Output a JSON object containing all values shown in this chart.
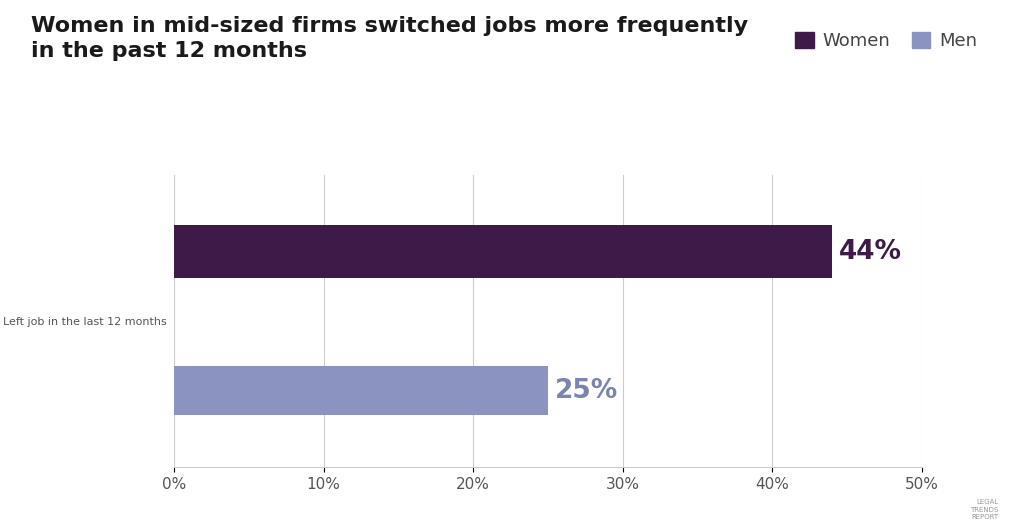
{
  "title_line1": "Women in mid-sized firms switched jobs more frequently",
  "title_line2": "in the past 12 months",
  "title_fontsize": 16,
  "title_color": "#1a1a1a",
  "category_label": "Left job in the last 12 months",
  "women_value": 0.44,
  "men_value": 0.25,
  "women_color": "#3d1a47",
  "men_color": "#8b93c0",
  "women_label_color": "#3d1a47",
  "men_label_color": "#7b83b0",
  "women_pct_label": "44%",
  "men_pct_label": "25%",
  "legend_women": "Women",
  "legend_men": "Men",
  "xlim": [
    0,
    0.5
  ],
  "xticks": [
    0.0,
    0.1,
    0.2,
    0.3,
    0.4,
    0.5
  ],
  "xtick_labels": [
    "0%",
    "10%",
    "20%",
    "30%",
    "40%",
    "50%"
  ],
  "background_color": "#ffffff",
  "grid_color": "#cccccc",
  "category_label_fontsize": 8,
  "pct_fontsize": 19,
  "legend_fontsize": 13,
  "tick_fontsize": 11
}
